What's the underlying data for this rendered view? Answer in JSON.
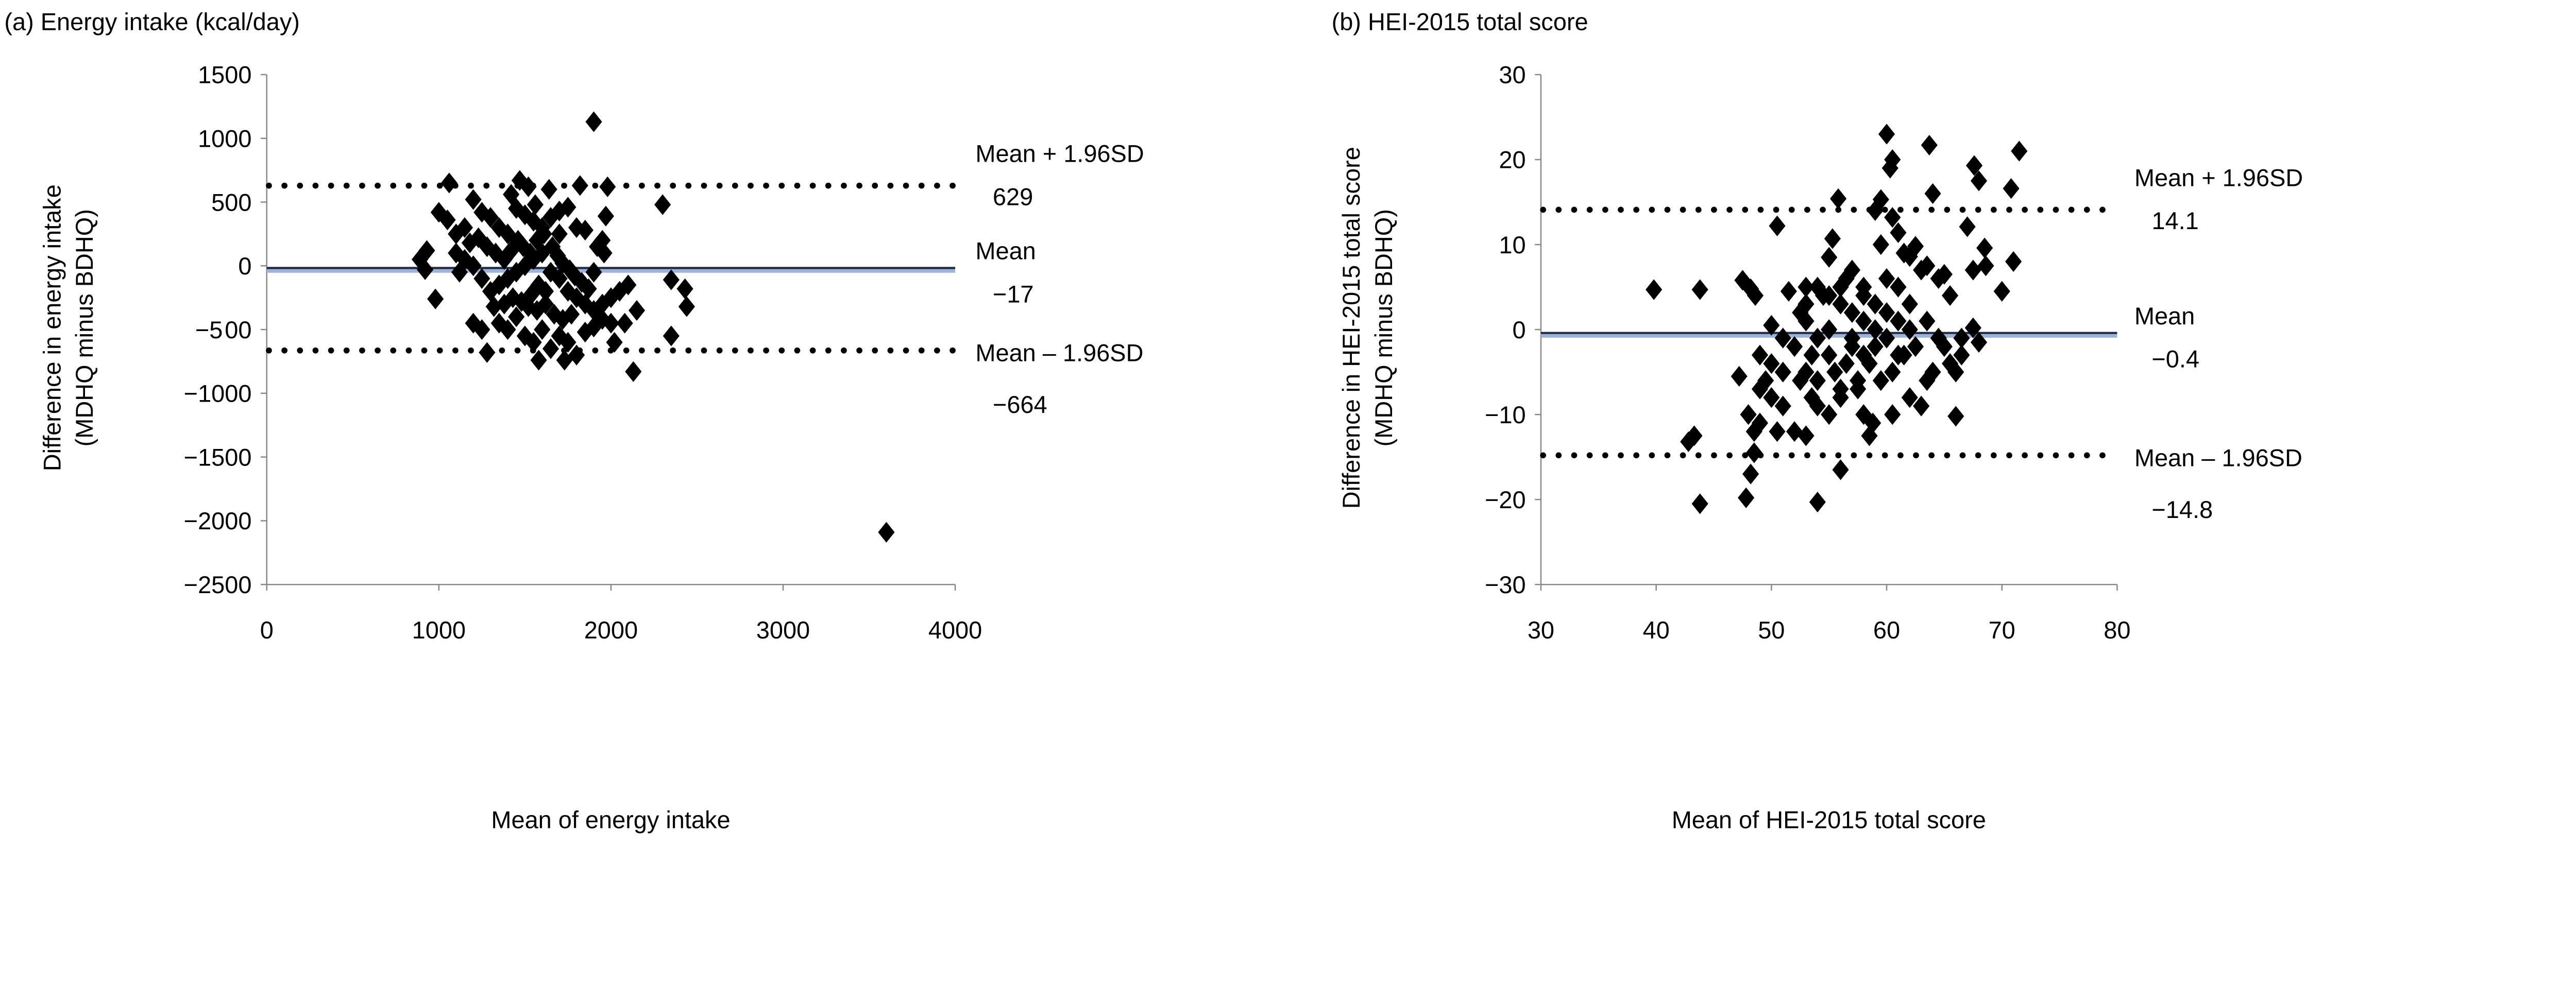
{
  "chart_data": [
    {
      "type": "scatter",
      "title": "(a) Energy intake (kcal/day)",
      "xlabel": "Mean of energy intake",
      "ylabel": [
        "Difference in energy intake",
        "(MDHQ minus BDHQ)"
      ],
      "xlim": [
        0,
        4000
      ],
      "ylim": [
        -2500,
        1500
      ],
      "xticks": [
        0,
        1000,
        2000,
        3000,
        4000
      ],
      "yticks": [
        1500,
        1000,
        500,
        0,
        -500,
        -1000,
        -1500,
        -2000,
        -2500
      ],
      "ytick_labels": [
        "1500",
        "1000",
        "500",
        "0",
        "−5 00",
        "−1000",
        "−1500",
        "−2000",
        "−2500"
      ],
      "grid": false,
      "marker": "diamond",
      "marker_color": "#000000",
      "mean_line": {
        "value": -17,
        "color": "#1f2a44",
        "shadow_color": "#9db4d8"
      },
      "limit_lines": [
        {
          "value": 629
        },
        {
          "value": -664
        }
      ],
      "annotations": [
        {
          "label": "Mean + 1.96SD",
          "value_text": "629"
        },
        {
          "label": "Mean",
          "value_text": "−17"
        },
        {
          "label": "Mean – 1.96SD",
          "value_text": "−664"
        }
      ],
      "points": [
        [
          1900,
          1130
        ],
        [
          3600,
          -2090
        ],
        [
          2300,
          480
        ],
        [
          2350,
          -110
        ],
        [
          2430,
          -180
        ],
        [
          2440,
          -320
        ],
        [
          2350,
          -550
        ],
        [
          2130,
          -830
        ],
        [
          1060,
          650
        ],
        [
          1980,
          620
        ],
        [
          1970,
          390
        ],
        [
          980,
          -260
        ],
        [
          890,
          50
        ],
        [
          920,
          -30
        ],
        [
          930,
          120
        ],
        [
          2020,
          -600
        ],
        [
          1580,
          -740
        ],
        [
          1730,
          -740
        ],
        [
          1280,
          -680
        ],
        [
          1820,
          630
        ],
        [
          1470,
          670
        ],
        [
          1520,
          620
        ],
        [
          1640,
          600
        ],
        [
          1200,
          520
        ],
        [
          1000,
          420
        ],
        [
          1050,
          360
        ],
        [
          1100,
          250
        ],
        [
          1150,
          300
        ],
        [
          1250,
          420
        ],
        [
          1300,
          380
        ],
        [
          1350,
          300
        ],
        [
          1400,
          250
        ],
        [
          1450,
          450
        ],
        [
          1500,
          400
        ],
        [
          1550,
          350
        ],
        [
          1600,
          300
        ],
        [
          1700,
          430
        ],
        [
          1750,
          460
        ],
        [
          1800,
          300
        ],
        [
          1850,
          280
        ],
        [
          1950,
          200
        ],
        [
          1960,
          100
        ],
        [
          1920,
          150
        ],
        [
          1900,
          -50
        ],
        [
          1100,
          100
        ],
        [
          1150,
          50
        ],
        [
          1200,
          0
        ],
        [
          1250,
          -100
        ],
        [
          1300,
          -200
        ],
        [
          1350,
          -150
        ],
        [
          1400,
          -100
        ],
        [
          1450,
          -50
        ],
        [
          1500,
          0
        ],
        [
          1550,
          50
        ],
        [
          1600,
          100
        ],
        [
          1650,
          -50
        ],
        [
          1700,
          -100
        ],
        [
          1750,
          -200
        ],
        [
          1800,
          -250
        ],
        [
          1850,
          -300
        ],
        [
          1900,
          -350
        ],
        [
          1950,
          -300
        ],
        [
          2000,
          -250
        ],
        [
          2050,
          -200
        ],
        [
          2100,
          -150
        ],
        [
          2150,
          -350
        ],
        [
          2080,
          -450
        ],
        [
          2000,
          -450
        ],
        [
          1200,
          -450
        ],
        [
          1250,
          -500
        ],
        [
          1350,
          -450
        ],
        [
          1400,
          -500
        ],
        [
          1450,
          -400
        ],
        [
          1500,
          -550
        ],
        [
          1550,
          -600
        ],
        [
          1600,
          -500
        ],
        [
          1650,
          -650
        ],
        [
          1700,
          -550
        ],
        [
          1750,
          -600
        ],
        [
          1800,
          -700
        ],
        [
          1850,
          -520
        ],
        [
          1900,
          -480
        ],
        [
          1950,
          -420
        ],
        [
          1120,
          -50
        ],
        [
          1180,
          180
        ],
        [
          1230,
          220
        ],
        [
          1280,
          150
        ],
        [
          1330,
          100
        ],
        [
          1380,
          50
        ],
        [
          1420,
          120
        ],
        [
          1460,
          200
        ],
        [
          1490,
          150
        ],
        [
          1530,
          100
        ],
        [
          1570,
          200
        ],
        [
          1610,
          250
        ],
        [
          1660,
          150
        ],
        [
          1690,
          80
        ],
        [
          1720,
          20
        ],
        [
          1760,
          -30
        ],
        [
          1790,
          -80
        ],
        [
          1830,
          -130
        ],
        [
          1870,
          -180
        ],
        [
          1320,
          -320
        ],
        [
          1380,
          -300
        ],
        [
          1430,
          -250
        ],
        [
          1480,
          -280
        ],
        [
          1520,
          -320
        ],
        [
          1570,
          -350
        ],
        [
          1620,
          -300
        ],
        [
          1670,
          -380
        ],
        [
          1720,
          -420
        ],
        [
          1770,
          -380
        ],
        [
          1620,
          -200
        ],
        [
          1580,
          -150
        ],
        [
          1540,
          -220
        ],
        [
          1700,
          250
        ],
        [
          1650,
          380
        ],
        [
          1560,
          480
        ],
        [
          1420,
          560
        ]
      ]
    },
    {
      "type": "scatter",
      "title": "(b) HEI-2015 total score",
      "xlabel": "Mean of HEI-2015 total score",
      "ylabel": [
        "Difference in HEI-2015 total score",
        "(MDHQ minus BDHQ)"
      ],
      "xlim": [
        30,
        80
      ],
      "ylim": [
        -30,
        30
      ],
      "xticks": [
        30,
        40,
        50,
        60,
        70,
        80
      ],
      "yticks": [
        30,
        20,
        10,
        0,
        -10,
        -20,
        -30
      ],
      "ytick_labels": [
        "30",
        "20",
        "10",
        "0",
        "−10",
        "−20",
        "−30"
      ],
      "grid": false,
      "marker": "diamond",
      "marker_color": "#000000",
      "mean_line": {
        "value": -0.4,
        "color": "#1f2a44",
        "shadow_color": "#9db4d8"
      },
      "limit_lines": [
        {
          "value": 14.1
        },
        {
          "value": -14.8
        }
      ],
      "annotations": [
        {
          "label": "Mean + 1.96SD",
          "value_text": "14.1"
        },
        {
          "label": "Mean",
          "value_text": "−0.4"
        },
        {
          "label": "Mean – 1.96SD",
          "value_text": "−14.8"
        }
      ],
      "points": [
        [
          39.8,
          4.7
        ],
        [
          43.8,
          4.7
        ],
        [
          43.8,
          -20.5
        ],
        [
          42.8,
          -13.2
        ],
        [
          43.3,
          -12.5
        ],
        [
          47.8,
          -19.8
        ],
        [
          48.2,
          -17
        ],
        [
          48.5,
          -14.5
        ],
        [
          47.5,
          5.8
        ],
        [
          48.2,
          4.8
        ],
        [
          48.6,
          4
        ],
        [
          47.2,
          -5.5
        ],
        [
          48,
          -10
        ],
        [
          48.5,
          -12
        ],
        [
          49,
          -11
        ],
        [
          49.5,
          -6
        ],
        [
          49,
          -3
        ],
        [
          50,
          -4
        ],
        [
          50.5,
          -12
        ],
        [
          50.5,
          12.2
        ],
        [
          50,
          0.5
        ],
        [
          51.5,
          4.5
        ],
        [
          51,
          -5
        ],
        [
          52,
          -12
        ],
        [
          53,
          -12.5
        ],
        [
          52.5,
          2
        ],
        [
          53,
          5
        ],
        [
          53.5,
          -3
        ],
        [
          54,
          -9
        ],
        [
          54,
          -20.3
        ],
        [
          54.5,
          4
        ],
        [
          55,
          -10
        ],
        [
          55.3,
          10.7
        ],
        [
          55,
          8.5
        ],
        [
          55.8,
          15.4
        ],
        [
          56,
          -16.5
        ],
        [
          56,
          -8
        ],
        [
          56.5,
          6
        ],
        [
          57,
          7
        ],
        [
          57,
          -2
        ],
        [
          57.5,
          -6
        ],
        [
          58,
          5
        ],
        [
          58,
          -10
        ],
        [
          58.5,
          -12.5
        ],
        [
          58.8,
          -11
        ],
        [
          59,
          14
        ],
        [
          59.5,
          15.3
        ],
        [
          59.5,
          10
        ],
        [
          60,
          23
        ],
        [
          60.3,
          19
        ],
        [
          60.5,
          20
        ],
        [
          60.5,
          13.2
        ],
        [
          61,
          11.4
        ],
        [
          61.5,
          9
        ],
        [
          62,
          8.6
        ],
        [
          62.5,
          9.8
        ],
        [
          63,
          7
        ],
        [
          63.5,
          7.5
        ],
        [
          63.7,
          21.7
        ],
        [
          64,
          16
        ],
        [
          64.5,
          6
        ],
        [
          65,
          6.5
        ],
        [
          65.5,
          4
        ],
        [
          66,
          -10.2
        ],
        [
          66,
          -5
        ],
        [
          66.5,
          -3
        ],
        [
          67,
          12.1
        ],
        [
          67.5,
          7
        ],
        [
          67.6,
          19.3
        ],
        [
          68,
          17.5
        ],
        [
          68.5,
          9.6
        ],
        [
          68.6,
          7.5
        ],
        [
          70,
          4.5
        ],
        [
          70.8,
          16.6
        ],
        [
          71,
          8
        ],
        [
          71.5,
          21
        ],
        [
          67.5,
          0.2
        ],
        [
          68,
          -1.5
        ],
        [
          60.5,
          -10
        ],
        [
          62,
          -8
        ],
        [
          63,
          -9
        ],
        [
          63.5,
          -6
        ],
        [
          64,
          -5
        ],
        [
          61,
          -3
        ],
        [
          60,
          -1
        ],
        [
          59,
          0
        ],
        [
          58,
          1
        ],
        [
          57,
          2
        ],
        [
          56,
          3
        ],
        [
          55,
          0
        ],
        [
          54,
          -1
        ],
        [
          53,
          1
        ],
        [
          52,
          -2
        ],
        [
          51,
          -1
        ],
        [
          52.5,
          -6
        ],
        [
          53.5,
          -8
        ],
        [
          55.5,
          -5
        ],
        [
          56.5,
          -4
        ],
        [
          57.5,
          -7
        ],
        [
          58.5,
          -4
        ],
        [
          59.5,
          -6
        ],
        [
          60.5,
          -5
        ],
        [
          61.5,
          -3
        ],
        [
          62.5,
          -2
        ],
        [
          63.5,
          1
        ],
        [
          64.5,
          -1
        ],
        [
          65,
          -2
        ],
        [
          65.5,
          -4
        ],
        [
          66.5,
          -1
        ],
        [
          58,
          4
        ],
        [
          59,
          3
        ],
        [
          60,
          6
        ],
        [
          61,
          5
        ],
        [
          62,
          3
        ],
        [
          56,
          5
        ],
        [
          55,
          4
        ],
        [
          54,
          5
        ],
        [
          53,
          3
        ],
        [
          57,
          -1
        ],
        [
          58,
          -3
        ],
        [
          59,
          -2
        ],
        [
          60,
          2
        ],
        [
          61,
          1
        ],
        [
          62,
          0
        ],
        [
          55,
          -3
        ],
        [
          56,
          -7
        ],
        [
          54,
          -6
        ],
        [
          53,
          -5
        ],
        [
          50,
          -8
        ],
        [
          51,
          -9
        ],
        [
          49,
          -7
        ]
      ]
    }
  ]
}
